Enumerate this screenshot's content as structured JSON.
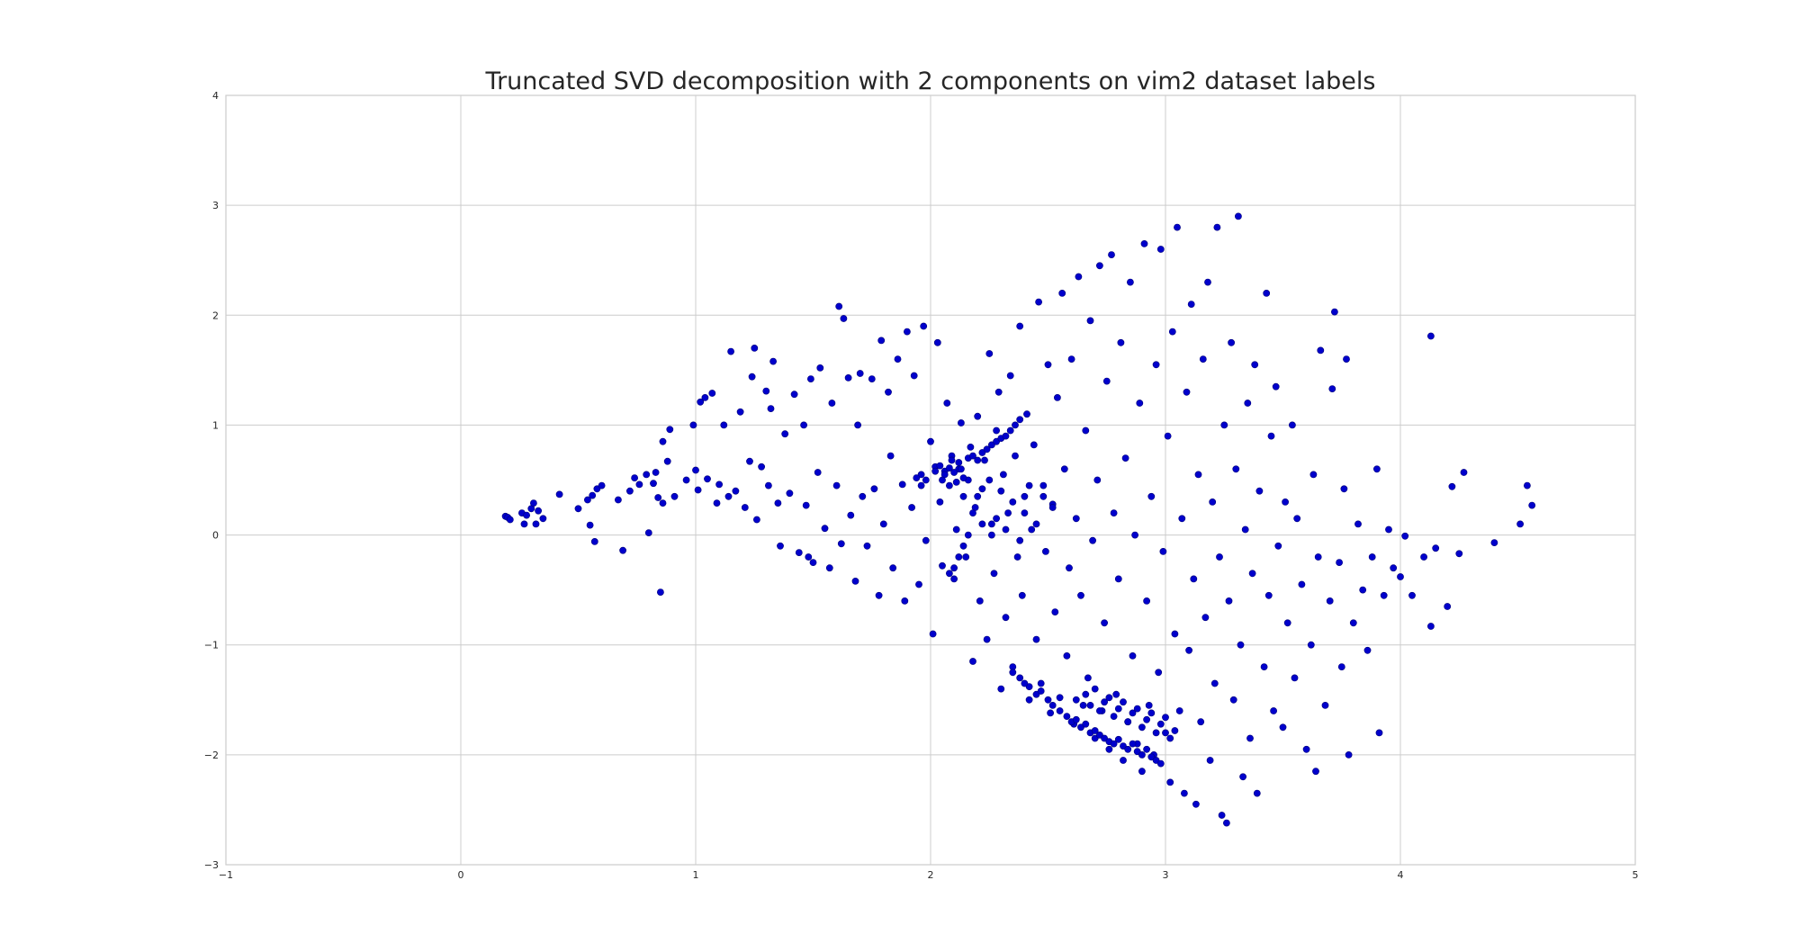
{
  "chart_data": {
    "type": "scatter",
    "title": "Truncated SVD decomposition with 2 components on vim2 dataset labels",
    "xlabel": "",
    "ylabel": "",
    "xlim": [
      -1,
      5
    ],
    "ylim": [
      -3,
      4
    ],
    "xticks": [
      -1,
      0,
      1,
      2,
      3,
      4,
      5
    ],
    "yticks": [
      -3,
      -2,
      -1,
      0,
      1,
      2,
      3,
      4
    ],
    "xtick_labels": [
      "−1",
      "0",
      "1",
      "2",
      "3",
      "4",
      "5"
    ],
    "ytick_labels": [
      "−3",
      "−2",
      "−1",
      "0",
      "1",
      "2",
      "3",
      "4"
    ],
    "grid": true,
    "legend": "none",
    "point_color": "#0000cc",
    "points": [
      [
        0.19,
        0.17
      ],
      [
        0.2,
        0.16
      ],
      [
        0.21,
        0.14
      ],
      [
        0.26,
        0.2
      ],
      [
        0.27,
        0.1
      ],
      [
        0.28,
        0.18
      ],
      [
        0.3,
        0.24
      ],
      [
        0.31,
        0.29
      ],
      [
        0.32,
        0.1
      ],
      [
        0.33,
        0.22
      ],
      [
        0.35,
        0.15
      ],
      [
        0.42,
        0.37
      ],
      [
        0.5,
        0.24
      ],
      [
        0.54,
        0.32
      ],
      [
        0.55,
        0.09
      ],
      [
        0.56,
        0.36
      ],
      [
        0.57,
        -0.06
      ],
      [
        0.58,
        0.42
      ],
      [
        0.6,
        0.45
      ],
      [
        0.67,
        0.32
      ],
      [
        0.69,
        -0.14
      ],
      [
        0.72,
        0.4
      ],
      [
        0.74,
        0.52
      ],
      [
        0.76,
        0.46
      ],
      [
        0.79,
        0.55
      ],
      [
        0.8,
        0.02
      ],
      [
        0.82,
        0.47
      ],
      [
        0.83,
        0.57
      ],
      [
        0.84,
        0.34
      ],
      [
        0.85,
        -0.52
      ],
      [
        0.86,
        0.29
      ],
      [
        0.86,
        0.85
      ],
      [
        0.88,
        0.67
      ],
      [
        0.89,
        0.96
      ],
      [
        0.91,
        0.35
      ],
      [
        0.96,
        0.5
      ],
      [
        0.99,
        1.0
      ],
      [
        1.0,
        0.59
      ],
      [
        1.01,
        0.41
      ],
      [
        1.02,
        1.21
      ],
      [
        1.04,
        1.25
      ],
      [
        1.05,
        0.51
      ],
      [
        1.07,
        1.29
      ],
      [
        1.09,
        0.29
      ],
      [
        1.1,
        0.46
      ],
      [
        1.12,
        1.0
      ],
      [
        1.14,
        0.35
      ],
      [
        1.15,
        1.67
      ],
      [
        1.17,
        0.4
      ],
      [
        1.19,
        1.12
      ],
      [
        1.21,
        0.25
      ],
      [
        1.23,
        0.67
      ],
      [
        1.24,
        1.44
      ],
      [
        1.25,
        1.7
      ],
      [
        1.26,
        0.14
      ],
      [
        1.28,
        0.62
      ],
      [
        1.3,
        1.31
      ],
      [
        1.31,
        0.45
      ],
      [
        1.32,
        1.15
      ],
      [
        1.33,
        1.58
      ],
      [
        1.35,
        0.29
      ],
      [
        1.36,
        -0.1
      ],
      [
        1.38,
        0.92
      ],
      [
        1.4,
        0.38
      ],
      [
        1.42,
        1.28
      ],
      [
        1.44,
        -0.16
      ],
      [
        1.46,
        1.0
      ],
      [
        1.47,
        0.27
      ],
      [
        1.48,
        -0.2
      ],
      [
        1.49,
        1.42
      ],
      [
        1.5,
        -0.25
      ],
      [
        1.52,
        0.57
      ],
      [
        1.53,
        1.52
      ],
      [
        1.55,
        0.06
      ],
      [
        1.57,
        -0.3
      ],
      [
        1.58,
        1.2
      ],
      [
        1.6,
        0.45
      ],
      [
        1.61,
        2.08
      ],
      [
        1.62,
        -0.08
      ],
      [
        1.63,
        1.97
      ],
      [
        1.65,
        1.43
      ],
      [
        1.66,
        0.18
      ],
      [
        1.68,
        -0.42
      ],
      [
        1.69,
        1.0
      ],
      [
        1.7,
        1.47
      ],
      [
        1.71,
        0.35
      ],
      [
        1.73,
        -0.1
      ],
      [
        1.75,
        1.42
      ],
      [
        1.76,
        0.42
      ],
      [
        1.78,
        -0.55
      ],
      [
        1.79,
        1.77
      ],
      [
        1.8,
        0.1
      ],
      [
        1.82,
        1.3
      ],
      [
        1.83,
        0.72
      ],
      [
        1.84,
        -0.3
      ],
      [
        1.86,
        1.6
      ],
      [
        1.88,
        0.46
      ],
      [
        1.89,
        -0.6
      ],
      [
        1.9,
        1.85
      ],
      [
        1.92,
        0.25
      ],
      [
        1.93,
        1.45
      ],
      [
        1.95,
        -0.45
      ],
      [
        1.96,
        0.55
      ],
      [
        1.97,
        1.9
      ],
      [
        1.98,
        -0.05
      ],
      [
        2.0,
        0.85
      ],
      [
        2.01,
        -0.9
      ],
      [
        2.02,
        0.62
      ],
      [
        2.03,
        1.75
      ],
      [
        2.04,
        0.3
      ],
      [
        2.05,
        -0.28
      ],
      [
        2.06,
        0.58
      ],
      [
        2.07,
        1.2
      ],
      [
        2.08,
        0.45
      ],
      [
        2.09,
        0.72
      ],
      [
        2.1,
        -0.4
      ],
      [
        2.11,
        0.05
      ],
      [
        2.12,
        0.6
      ],
      [
        2.13,
        1.02
      ],
      [
        2.14,
        0.35
      ],
      [
        2.15,
        -0.2
      ],
      [
        2.16,
        0.5
      ],
      [
        2.17,
        0.8
      ],
      [
        2.18,
        -1.15
      ],
      [
        2.19,
        0.25
      ],
      [
        2.2,
        1.08
      ],
      [
        2.21,
        -0.6
      ],
      [
        2.22,
        0.42
      ],
      [
        2.23,
        0.68
      ],
      [
        2.24,
        -0.95
      ],
      [
        2.25,
        1.65
      ],
      [
        2.26,
        0.1
      ],
      [
        2.27,
        -0.35
      ],
      [
        2.28,
        0.95
      ],
      [
        2.29,
        1.3
      ],
      [
        2.3,
        -1.4
      ],
      [
        2.31,
        0.55
      ],
      [
        2.32,
        -0.75
      ],
      [
        2.33,
        0.2
      ],
      [
        2.34,
        1.45
      ],
      [
        2.35,
        -1.2
      ],
      [
        2.36,
        0.72
      ],
      [
        2.37,
        -0.2
      ],
      [
        2.38,
        1.9
      ],
      [
        2.39,
        -0.55
      ],
      [
        2.4,
        0.35
      ],
      [
        2.41,
        1.1
      ],
      [
        2.42,
        -1.5
      ],
      [
        2.43,
        0.05
      ],
      [
        2.44,
        0.82
      ],
      [
        2.45,
        -0.95
      ],
      [
        2.46,
        2.12
      ],
      [
        2.47,
        -1.35
      ],
      [
        2.48,
        0.45
      ],
      [
        2.49,
        -0.15
      ],
      [
        2.5,
        1.55
      ],
      [
        2.51,
        -1.62
      ],
      [
        2.52,
        0.28
      ],
      [
        2.53,
        -0.7
      ],
      [
        2.54,
        1.25
      ],
      [
        2.55,
        -1.48
      ],
      [
        2.56,
        2.2
      ],
      [
        2.57,
        0.6
      ],
      [
        2.58,
        -1.1
      ],
      [
        2.59,
        -0.3
      ],
      [
        2.6,
        1.6
      ],
      [
        2.61,
        -1.72
      ],
      [
        2.62,
        0.15
      ],
      [
        2.63,
        2.35
      ],
      [
        2.64,
        -0.55
      ],
      [
        2.65,
        -1.55
      ],
      [
        2.66,
        0.95
      ],
      [
        2.67,
        -1.3
      ],
      [
        2.68,
        1.95
      ],
      [
        2.69,
        -0.05
      ],
      [
        2.7,
        -1.85
      ],
      [
        2.71,
        0.5
      ],
      [
        2.72,
        2.45
      ],
      [
        2.73,
        -1.6
      ],
      [
        2.74,
        -0.8
      ],
      [
        2.75,
        1.4
      ],
      [
        2.76,
        -1.95
      ],
      [
        2.77,
        2.55
      ],
      [
        2.78,
        0.2
      ],
      [
        2.79,
        -1.45
      ],
      [
        2.8,
        -0.4
      ],
      [
        2.81,
        1.75
      ],
      [
        2.82,
        -2.05
      ],
      [
        2.83,
        0.7
      ],
      [
        2.84,
        -1.7
      ],
      [
        2.85,
        2.3
      ],
      [
        2.86,
        -1.1
      ],
      [
        2.87,
        0.0
      ],
      [
        2.88,
        -1.9
      ],
      [
        2.89,
        1.2
      ],
      [
        2.9,
        -2.15
      ],
      [
        2.91,
        2.65
      ],
      [
        2.92,
        -0.6
      ],
      [
        2.93,
        -1.55
      ],
      [
        2.94,
        0.35
      ],
      [
        2.95,
        -2.0
      ],
      [
        2.96,
        1.55
      ],
      [
        2.97,
        -1.25
      ],
      [
        2.98,
        2.6
      ],
      [
        2.99,
        -0.15
      ],
      [
        3.0,
        -1.8
      ],
      [
        3.01,
        0.9
      ],
      [
        3.02,
        -2.25
      ],
      [
        3.03,
        1.85
      ],
      [
        3.04,
        -0.9
      ],
      [
        3.05,
        2.8
      ],
      [
        3.06,
        -1.6
      ],
      [
        3.07,
        0.15
      ],
      [
        3.08,
        -2.35
      ],
      [
        3.09,
        1.3
      ],
      [
        3.1,
        -1.05
      ],
      [
        3.11,
        2.1
      ],
      [
        3.12,
        -0.4
      ],
      [
        3.13,
        -2.45
      ],
      [
        3.14,
        0.55
      ],
      [
        3.15,
        -1.7
      ],
      [
        3.16,
        1.6
      ],
      [
        3.17,
        -0.75
      ],
      [
        3.18,
        2.3
      ],
      [
        3.19,
        -2.05
      ],
      [
        3.2,
        0.3
      ],
      [
        3.21,
        -1.35
      ],
      [
        3.22,
        2.8
      ],
      [
        3.23,
        -0.2
      ],
      [
        3.24,
        -2.55
      ],
      [
        3.25,
        1.0
      ],
      [
        3.26,
        -2.62
      ],
      [
        3.27,
        -0.6
      ],
      [
        3.28,
        1.75
      ],
      [
        3.29,
        -1.5
      ],
      [
        3.3,
        0.6
      ],
      [
        3.31,
        2.9
      ],
      [
        3.32,
        -1.0
      ],
      [
        3.33,
        -2.2
      ],
      [
        3.34,
        0.05
      ],
      [
        3.35,
        1.2
      ],
      [
        3.36,
        -1.85
      ],
      [
        3.37,
        -0.35
      ],
      [
        3.38,
        1.55
      ],
      [
        3.39,
        -2.35
      ],
      [
        3.4,
        0.4
      ],
      [
        3.42,
        -1.2
      ],
      [
        3.43,
        2.2
      ],
      [
        3.44,
        -0.55
      ],
      [
        3.45,
        0.9
      ],
      [
        3.46,
        -1.6
      ],
      [
        3.47,
        1.35
      ],
      [
        3.48,
        -0.1
      ],
      [
        3.5,
        -1.75
      ],
      [
        3.51,
        0.3
      ],
      [
        3.52,
        -0.8
      ],
      [
        3.54,
        1.0
      ],
      [
        3.55,
        -1.3
      ],
      [
        3.56,
        0.15
      ],
      [
        3.58,
        -0.45
      ],
      [
        3.6,
        -1.95
      ],
      [
        3.62,
        -1.0
      ],
      [
        3.63,
        0.55
      ],
      [
        3.64,
        -2.15
      ],
      [
        3.65,
        -0.2
      ],
      [
        3.66,
        1.68
      ],
      [
        3.68,
        -1.55
      ],
      [
        3.7,
        -0.6
      ],
      [
        3.71,
        1.33
      ],
      [
        3.72,
        2.03
      ],
      [
        3.74,
        -0.25
      ],
      [
        3.75,
        -1.2
      ],
      [
        3.76,
        0.42
      ],
      [
        3.77,
        1.6
      ],
      [
        3.78,
        -2.0
      ],
      [
        3.8,
        -0.8
      ],
      [
        3.82,
        0.1
      ],
      [
        3.84,
        -0.5
      ],
      [
        3.86,
        -1.05
      ],
      [
        3.88,
        -0.2
      ],
      [
        3.9,
        0.6
      ],
      [
        3.91,
        -1.8
      ],
      [
        3.93,
        -0.55
      ],
      [
        3.95,
        0.05
      ],
      [
        3.97,
        -0.3
      ],
      [
        4.0,
        -0.38
      ],
      [
        4.02,
        -0.01
      ],
      [
        4.05,
        -0.55
      ],
      [
        4.1,
        -0.2
      ],
      [
        4.13,
        1.81
      ],
      [
        4.13,
        -0.83
      ],
      [
        4.15,
        -0.12
      ],
      [
        4.2,
        -0.65
      ],
      [
        4.22,
        0.44
      ],
      [
        4.25,
        -0.17
      ],
      [
        4.27,
        0.57
      ],
      [
        4.4,
        -0.07
      ],
      [
        4.51,
        0.1
      ],
      [
        4.54,
        0.45
      ],
      [
        4.56,
        0.27
      ],
      [
        2.02,
        0.58
      ],
      [
        2.04,
        0.63
      ],
      [
        2.06,
        0.55
      ],
      [
        2.08,
        0.61
      ],
      [
        2.1,
        0.57
      ],
      [
        2.12,
        0.66
      ],
      [
        2.14,
        0.52
      ],
      [
        2.16,
        0.7
      ],
      [
        2.05,
        0.5
      ],
      [
        2.11,
        0.48
      ],
      [
        2.09,
        0.68
      ],
      [
        2.13,
        0.6
      ],
      [
        1.98,
        0.5
      ],
      [
        1.96,
        0.45
      ],
      [
        1.94,
        0.52
      ],
      [
        2.18,
        0.72
      ],
      [
        2.2,
        0.68
      ],
      [
        2.22,
        0.75
      ],
      [
        2.24,
        0.78
      ],
      [
        2.26,
        0.82
      ],
      [
        2.28,
        0.85
      ],
      [
        2.3,
        0.88
      ],
      [
        2.32,
        0.9
      ],
      [
        2.34,
        0.95
      ],
      [
        2.36,
        1.0
      ],
      [
        2.38,
        1.05
      ],
      [
        2.55,
        -1.6
      ],
      [
        2.58,
        -1.65
      ],
      [
        2.6,
        -1.7
      ],
      [
        2.62,
        -1.68
      ],
      [
        2.64,
        -1.75
      ],
      [
        2.66,
        -1.72
      ],
      [
        2.68,
        -1.8
      ],
      [
        2.7,
        -1.78
      ],
      [
        2.72,
        -1.82
      ],
      [
        2.74,
        -1.85
      ],
      [
        2.76,
        -1.88
      ],
      [
        2.78,
        -1.9
      ],
      [
        2.8,
        -1.86
      ],
      [
        2.82,
        -1.92
      ],
      [
        2.84,
        -1.95
      ],
      [
        2.86,
        -1.9
      ],
      [
        2.88,
        -1.97
      ],
      [
        2.9,
        -2.0
      ],
      [
        2.92,
        -1.95
      ],
      [
        2.94,
        -2.02
      ],
      [
        2.96,
        -2.05
      ],
      [
        2.98,
        -2.08
      ],
      [
        2.5,
        -1.5
      ],
      [
        2.52,
        -1.55
      ],
      [
        2.45,
        -1.45
      ],
      [
        2.47,
        -1.42
      ],
      [
        2.42,
        -1.38
      ],
      [
        2.4,
        -1.35
      ],
      [
        2.38,
        -1.3
      ],
      [
        2.35,
        -1.25
      ],
      [
        2.62,
        -1.5
      ],
      [
        2.68,
        -1.55
      ],
      [
        2.72,
        -1.6
      ],
      [
        2.78,
        -1.65
      ],
      [
        2.84,
        -1.7
      ],
      [
        2.9,
        -1.75
      ],
      [
        2.96,
        -1.8
      ],
      [
        3.02,
        -1.85
      ],
      [
        2.66,
        -1.45
      ],
      [
        2.74,
        -1.52
      ],
      [
        2.8,
        -1.58
      ],
      [
        2.86,
        -1.62
      ],
      [
        2.92,
        -1.68
      ],
      [
        2.98,
        -1.72
      ],
      [
        3.04,
        -1.78
      ],
      [
        2.7,
        -1.4
      ],
      [
        2.76,
        -1.48
      ],
      [
        2.82,
        -1.52
      ],
      [
        2.88,
        -1.58
      ],
      [
        2.94,
        -1.62
      ],
      [
        3.0,
        -1.66
      ],
      [
        2.3,
        0.4
      ],
      [
        2.35,
        0.3
      ],
      [
        2.4,
        0.2
      ],
      [
        2.45,
        0.1
      ],
      [
        2.25,
        0.5
      ],
      [
        2.2,
        0.35
      ],
      [
        2.28,
        0.15
      ],
      [
        2.32,
        0.05
      ],
      [
        2.38,
        -0.05
      ],
      [
        2.42,
        0.45
      ],
      [
        2.48,
        0.35
      ],
      [
        2.52,
        0.25
      ],
      [
        2.18,
        0.2
      ],
      [
        2.22,
        0.1
      ],
      [
        2.26,
        0.0
      ],
      [
        2.16,
        0.0
      ],
      [
        2.14,
        -0.1
      ],
      [
        2.12,
        -0.2
      ],
      [
        2.1,
        -0.3
      ],
      [
        2.08,
        -0.35
      ]
    ]
  }
}
